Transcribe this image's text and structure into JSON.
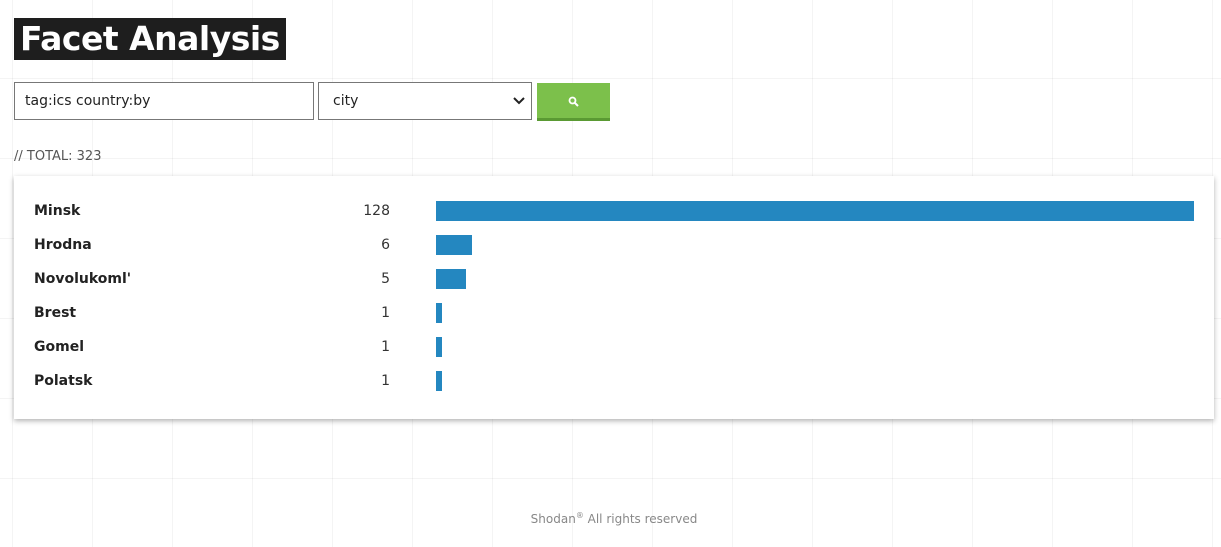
{
  "header": {
    "title": "Facet Analysis"
  },
  "search": {
    "query": "tag:ics country:by",
    "facet": "city"
  },
  "total": {
    "label": "// TOTAL:",
    "value": 323
  },
  "facets": {
    "rows": [
      {
        "name": "Minsk",
        "count": 128
      },
      {
        "name": "Hrodna",
        "count": 6
      },
      {
        "name": "Novolukoml'",
        "count": 5
      },
      {
        "name": "Brest",
        "count": 1
      },
      {
        "name": "Gomel",
        "count": 1
      },
      {
        "name": "Polatsk",
        "count": 1
      }
    ]
  },
  "footer": {
    "brand": "Shodan",
    "mark": "®",
    "text": "All rights reserved"
  }
}
